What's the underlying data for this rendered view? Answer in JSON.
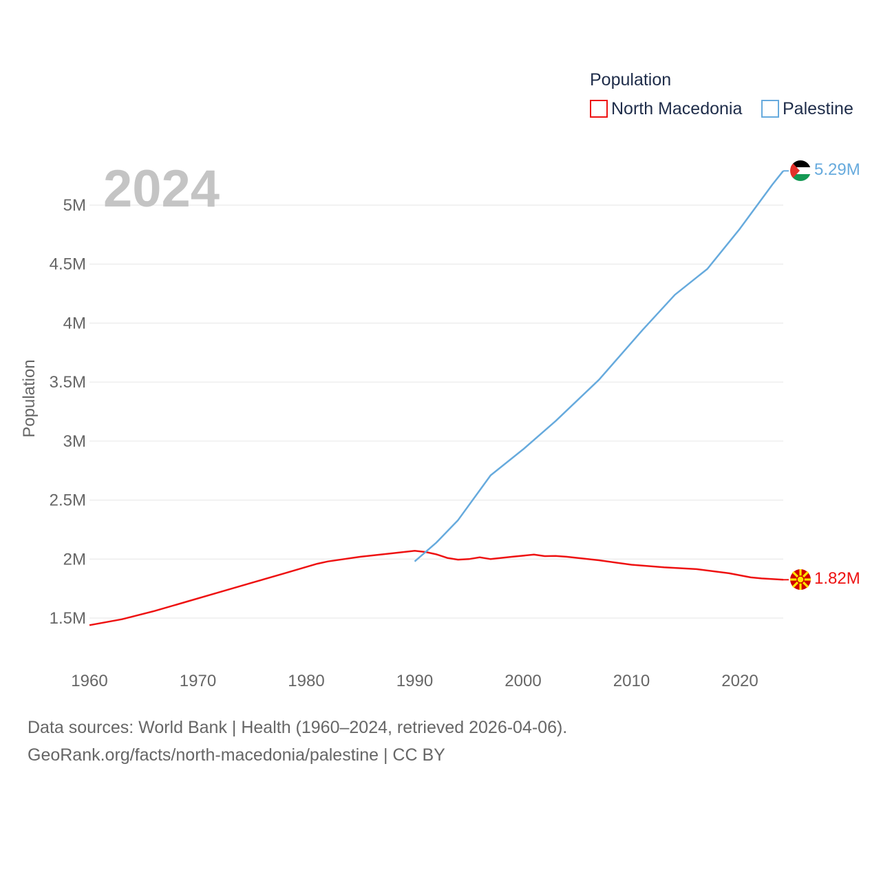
{
  "chart_data": {
    "type": "line",
    "title": "",
    "legend_title": "Population",
    "year_label": "2024",
    "xlabel": "",
    "ylabel": "Population",
    "xlim": [
      1960,
      2024
    ],
    "ylim": [
      1250000,
      5400000
    ],
    "x_ticks": [
      1960,
      1970,
      1980,
      1990,
      2000,
      2010,
      2020
    ],
    "x_tick_labels": [
      "1960",
      "1970",
      "1980",
      "1990",
      "2000",
      "2010",
      "2020"
    ],
    "y_ticks": [
      1500000,
      2000000,
      2500000,
      3000000,
      3500000,
      4000000,
      4500000,
      5000000
    ],
    "y_tick_labels": [
      "1.5M",
      "2M",
      "2.5M",
      "3M",
      "3.5M",
      "4M",
      "4.5M",
      "5M"
    ],
    "grid": true,
    "legend_position": "top-right",
    "series": [
      {
        "name": "North Macedonia",
        "color": "#ee1111",
        "end_label": "1.82M",
        "flag": "north-macedonia-flag",
        "points": [
          [
            1960,
            1440000
          ],
          [
            1963,
            1490000
          ],
          [
            1966,
            1560000
          ],
          [
            1969,
            1640000
          ],
          [
            1972,
            1720000
          ],
          [
            1975,
            1800000
          ],
          [
            1978,
            1880000
          ],
          [
            1981,
            1960000
          ],
          [
            1982,
            1980000
          ],
          [
            1985,
            2020000
          ],
          [
            1988,
            2050000
          ],
          [
            1990,
            2070000
          ],
          [
            1991,
            2060000
          ],
          [
            1992,
            2040000
          ],
          [
            1993,
            2010000
          ],
          [
            1994,
            1995000
          ],
          [
            1995,
            2000000
          ],
          [
            1996,
            2015000
          ],
          [
            1997,
            2000000
          ],
          [
            1999,
            2020000
          ],
          [
            2001,
            2038000
          ],
          [
            2002,
            2025000
          ],
          [
            2003,
            2027000
          ],
          [
            2004,
            2020000
          ],
          [
            2007,
            1990000
          ],
          [
            2010,
            1952000
          ],
          [
            2013,
            1930000
          ],
          [
            2016,
            1915000
          ],
          [
            2019,
            1880000
          ],
          [
            2021,
            1845000
          ],
          [
            2022,
            1836000
          ],
          [
            2024,
            1825000
          ]
        ]
      },
      {
        "name": "Palestine",
        "color": "#66aadd",
        "end_label": "5.29M",
        "flag": "palestine-flag",
        "points": [
          [
            1990,
            1980000
          ],
          [
            1992,
            2140000
          ],
          [
            1994,
            2330000
          ],
          [
            1997,
            2710000
          ],
          [
            2000,
            2930000
          ],
          [
            2003,
            3170000
          ],
          [
            2007,
            3520000
          ],
          [
            2011,
            3940000
          ],
          [
            2014,
            4240000
          ],
          [
            2017,
            4460000
          ],
          [
            2020,
            4800000
          ],
          [
            2023,
            5175000
          ],
          [
            2024,
            5290000
          ]
        ]
      }
    ]
  },
  "footer": {
    "line1": "Data sources: World Bank | Health (1960–2024, retrieved 2026-04-06).",
    "line2": "GeoRank.org/facts/north-macedonia/palestine | CC BY"
  }
}
